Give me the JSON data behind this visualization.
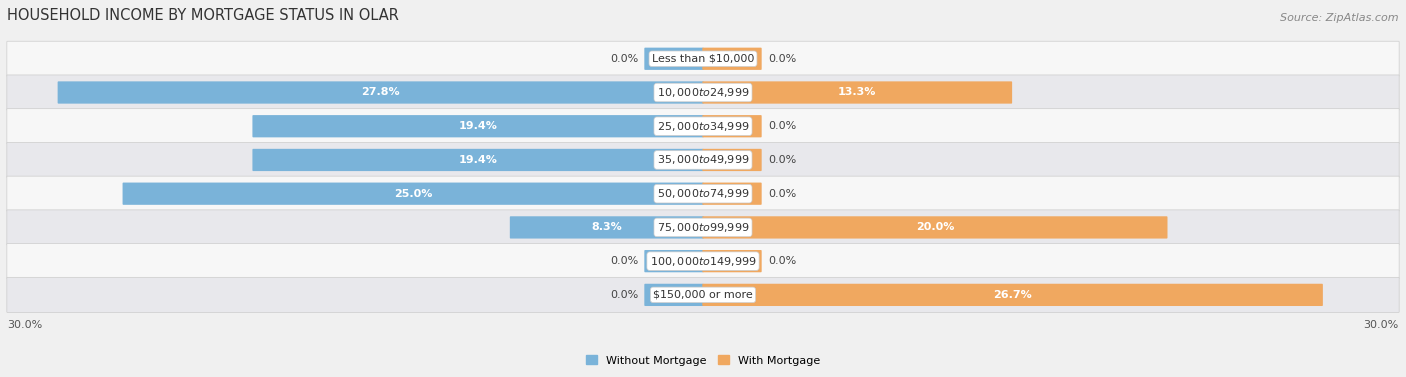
{
  "title": "HOUSEHOLD INCOME BY MORTGAGE STATUS IN OLAR",
  "source": "Source: ZipAtlas.com",
  "categories": [
    "Less than $10,000",
    "$10,000 to $24,999",
    "$25,000 to $34,999",
    "$35,000 to $49,999",
    "$50,000 to $74,999",
    "$75,000 to $99,999",
    "$100,000 to $149,999",
    "$150,000 or more"
  ],
  "without_mortgage": [
    0.0,
    27.8,
    19.4,
    19.4,
    25.0,
    8.3,
    0.0,
    0.0
  ],
  "with_mortgage": [
    0.0,
    13.3,
    0.0,
    0.0,
    0.0,
    20.0,
    0.0,
    26.7
  ],
  "without_mortgage_color": "#7ab3d9",
  "with_mortgage_color": "#f0a860",
  "axis_max": 30.0,
  "legend_without": "Without Mortgage",
  "legend_with": "With Mortgage",
  "bg_color": "#f0f0f0",
  "row_color_light": "#f7f7f7",
  "row_color_dark": "#e8e8ec",
  "title_fontsize": 10.5,
  "source_fontsize": 8,
  "label_fontsize": 8,
  "cat_fontsize": 8,
  "stub_size": 2.5
}
